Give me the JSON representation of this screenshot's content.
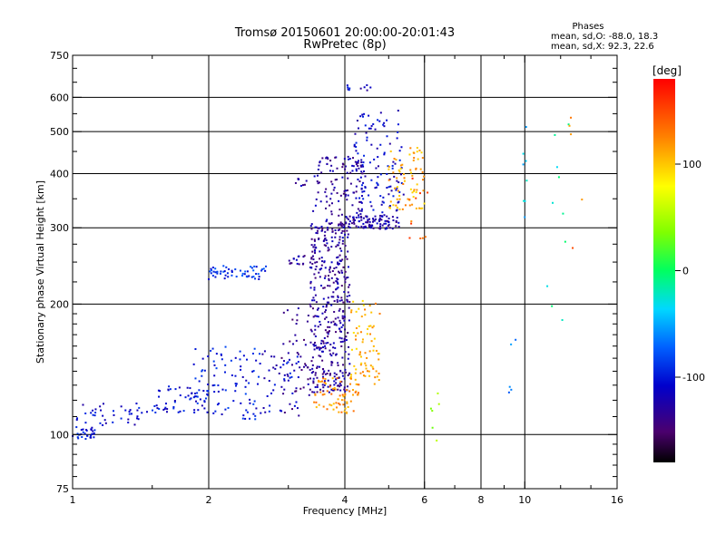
{
  "chart_data": {
    "type": "scatter",
    "title": "Tromsø 20150601 20:00:00-20:01:43",
    "subtitle": "RwPretec (8p)",
    "xlabel": "Frequency [MHz]",
    "ylabel": "Stationary phase Virtual Height [km]",
    "x_scale": "log",
    "y_scale": "log",
    "xlim": [
      1,
      16
    ],
    "ylim": [
      75,
      750
    ],
    "x_ticks": [
      1,
      2,
      4,
      6,
      8,
      10,
      16
    ],
    "x_tick_labels": [
      "1",
      "2",
      "4",
      "6",
      "8",
      "10",
      "16"
    ],
    "x_minor_ticks": [
      1.5,
      3,
      5,
      7,
      9,
      12,
      14
    ],
    "y_ticks": [
      75,
      100,
      200,
      300,
      400,
      500,
      600,
      750
    ],
    "y_tick_labels": [
      "75",
      "100",
      "200",
      "300",
      "400",
      "500",
      "600",
      "750"
    ],
    "y_minor_ticks": [
      80,
      85,
      90,
      95,
      110,
      120,
      130,
      140,
      150,
      160,
      170,
      180,
      190,
      225,
      250,
      275,
      350,
      450,
      550,
      650,
      700
    ],
    "grid": true,
    "stats": {
      "heading": "Phases",
      "o_line": "mean, sd,O: -88.0, 18.3",
      "x_line": "mean, sd,X:  92.3, 22.6"
    },
    "colorbar": {
      "label": "[deg]",
      "range": [
        -180,
        180
      ],
      "ticks": [
        100,
        0,
        -100
      ],
      "tick_labels": [
        "100",
        "0",
        "-100"
      ],
      "colormap": "rainbow"
    },
    "point_groups": [
      {
        "x_range": [
          1.0,
          1.12
        ],
        "y_range": [
          97,
          105
        ],
        "phase": -100,
        "count": 30
      },
      {
        "x_range": [
          1.02,
          1.5
        ],
        "y_range": [
          105,
          118
        ],
        "phase": -110,
        "count": 40
      },
      {
        "x_range": [
          1.5,
          2.0
        ],
        "y_range": [
          112,
          130
        ],
        "phase": -105,
        "count": 55
      },
      {
        "x_range": [
          1.85,
          2.6
        ],
        "y_range": [
          108,
          160
        ],
        "phase": -100,
        "count": 90
      },
      {
        "x_range": [
          2.6,
          3.2
        ],
        "y_range": [
          112,
          160
        ],
        "phase": -110,
        "count": 45
      },
      {
        "x_range": [
          2.0,
          2.7
        ],
        "y_range": [
          228,
          245
        ],
        "phase": -90,
        "count": 55
      },
      {
        "x_range": [
          2.9,
          3.35
        ],
        "y_range": [
          110,
          200
        ],
        "phase": -135,
        "count": 45
      },
      {
        "x_range": [
          3.0,
          3.3
        ],
        "y_range": [
          240,
          260
        ],
        "phase": -130,
        "count": 15
      },
      {
        "x_range": [
          3.1,
          3.3
        ],
        "y_range": [
          370,
          390
        ],
        "phase": -125,
        "count": 8
      },
      {
        "x_range": [
          3.35,
          4.1
        ],
        "y_range": [
          125,
          310
        ],
        "phase": -130,
        "count": 420
      },
      {
        "x_range": [
          3.4,
          4.4
        ],
        "y_range": [
          300,
          440
        ],
        "phase": -128,
        "count": 120
      },
      {
        "x_range": [
          4.0,
          5.3
        ],
        "y_range": [
          298,
          320
        ],
        "phase": -125,
        "count": 90
      },
      {
        "x_range": [
          4.2,
          5.4
        ],
        "y_range": [
          320,
          560
        ],
        "phase": -112,
        "count": 120
      },
      {
        "x_range": [
          4.0,
          4.6
        ],
        "y_range": [
          615,
          640
        ],
        "phase": -115,
        "count": 10
      },
      {
        "x_range": [
          3.4,
          4.3
        ],
        "y_range": [
          112,
          135
        ],
        "phase": 120,
        "count": 70
      },
      {
        "x_range": [
          4.1,
          4.8
        ],
        "y_range": [
          130,
          205
        ],
        "phase": 110,
        "count": 75
      },
      {
        "x_range": [
          5.0,
          6.0
        ],
        "y_range": [
          330,
          460
        ],
        "phase": 110,
        "count": 70
      },
      {
        "x_range": [
          5.4,
          6.1
        ],
        "y_range": [
          280,
          440
        ],
        "phase": 140,
        "count": 12
      },
      {
        "x_range": [
          9.2,
          9.6
        ],
        "y_range": [
          108,
          200
        ],
        "phase": -60,
        "count": 5
      },
      {
        "x_range": [
          9.9,
          10.1
        ],
        "y_range": [
          300,
          620
        ],
        "phase": -40,
        "count": 8
      },
      {
        "x_range": [
          11.2,
          12.5
        ],
        "y_range": [
          170,
          560
        ],
        "phase": -20,
        "count": 10
      },
      {
        "x_range": [
          6.2,
          6.5
        ],
        "y_range": [
          90,
          130
        ],
        "phase": 40,
        "count": 6
      },
      {
        "x_range": [
          12.5,
          13.6
        ],
        "y_range": [
          130,
          650
        ],
        "phase": 130,
        "count": 5
      }
    ]
  }
}
